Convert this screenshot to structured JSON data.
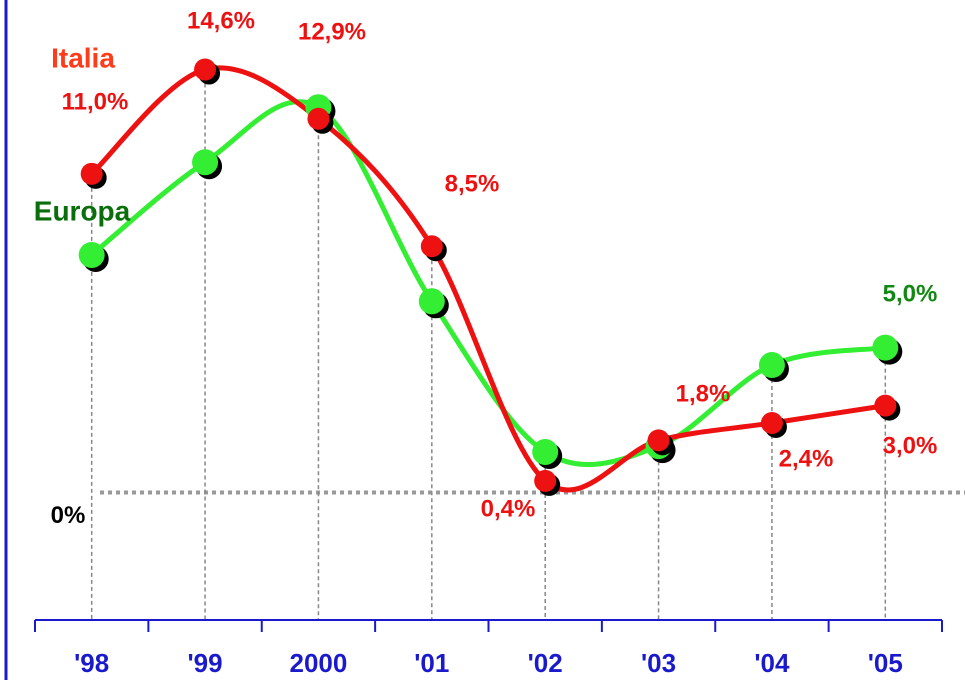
{
  "chart_data": {
    "type": "line",
    "categories": [
      "'98",
      "'99",
      "2000",
      "'01",
      "'02",
      "'03",
      "'04",
      "'05"
    ],
    "series": [
      {
        "name": "Italia",
        "color": "#ee1111",
        "values": [
          11.0,
          14.6,
          12.9,
          8.5,
          0.4,
          1.8,
          2.4,
          3.0
        ],
        "value_labels": [
          "11,0%",
          "14,6%",
          "12,9%",
          "8,5%",
          "0,4%",
          "1,8%",
          "2,4%",
          "3,0%"
        ]
      },
      {
        "name": "Europa",
        "color": "#33ee33",
        "values": [
          8.2,
          11.4,
          13.3,
          6.6,
          1.4,
          1.6,
          4.4,
          5.0
        ],
        "value_labels": [
          null,
          null,
          null,
          null,
          null,
          null,
          null,
          "5,0%"
        ]
      }
    ],
    "ylim": [
      -4.4,
      17
    ],
    "yticks": [
      {
        "value": 0,
        "label": "0%"
      }
    ]
  }
}
